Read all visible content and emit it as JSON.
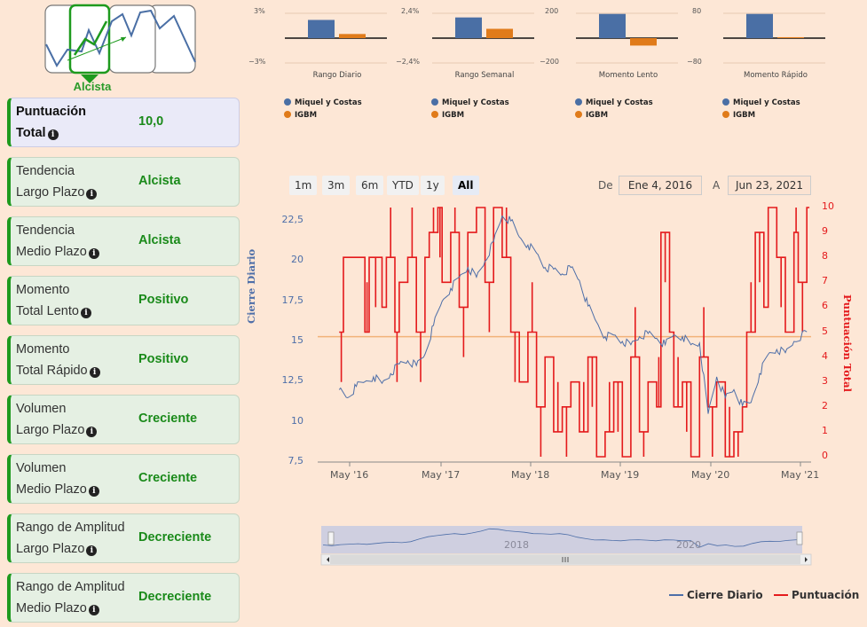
{
  "sidebar": {
    "trend_icon": "trend-selector-icon",
    "trend_label": "Alcista",
    "metrics": [
      {
        "line1": "Puntuación",
        "line2": "Total",
        "value": "10,0"
      },
      {
        "line1": "Tendencia",
        "line2": "Largo Plazo",
        "value": "Alcista"
      },
      {
        "line1": "Tendencia",
        "line2": "Medio Plazo",
        "value": "Alcista"
      },
      {
        "line1": "Momento",
        "line2": "Total Lento",
        "value": "Positivo"
      },
      {
        "line1": "Momento",
        "line2": "Total Rápido",
        "value": "Positivo"
      },
      {
        "line1": "Volumen",
        "line2": "Largo Plazo",
        "value": "Creciente"
      },
      {
        "line1": "Volumen",
        "line2": "Medio Plazo",
        "value": "Creciente"
      },
      {
        "line1": "Rango de Amplitud",
        "line2": "Largo Plazo",
        "value": "Decreciente"
      },
      {
        "line1": "Rango de Amplitud",
        "line2": "Medio Plazo",
        "value": "Decreciente"
      }
    ]
  },
  "colors": {
    "blue": "#4a6fa5",
    "orange": "#e07b1a",
    "red": "#e41a1c",
    "green": "#1e9a1e",
    "avg_line": "#f2b279"
  },
  "legend": {
    "stock": "Miquel y Costas",
    "index": "IGBM"
  },
  "mini_charts": [
    {
      "caption": "Rango Diario",
      "top": "3%",
      "bottom": "−3%",
      "stock": 2.2,
      "index": 0.5,
      "max": 3
    },
    {
      "caption": "Rango Semanal",
      "top": "2,4%",
      "bottom": "−2,4%",
      "stock": 2.0,
      "index": 0.9,
      "max": 2.4
    },
    {
      "caption": "Momento Lento",
      "top": "200",
      "bottom": "−200",
      "stock": 195,
      "index": -60,
      "max": 200
    },
    {
      "caption": "Momento Rápido",
      "top": "80",
      "bottom": "−80",
      "stock": 78,
      "index": 3,
      "max": 80
    }
  ],
  "range_selector": {
    "buttons": [
      "1m",
      "3m",
      "6m",
      "YTD",
      "1y",
      "All"
    ],
    "active": "All",
    "from_label": "De",
    "from_value": "Ene 4, 2016",
    "to_label": "A",
    "to_value": "Jun 23, 2021"
  },
  "chart_data": {
    "type": "line",
    "title": "",
    "x_tick_labels": [
      "May '16",
      "May '17",
      "May '18",
      "May '19",
      "May '20",
      "May '21"
    ],
    "left_axis": {
      "title": "Cierre Diario",
      "ticks": [
        "7,5",
        "10",
        "12,5",
        "15",
        "17,5",
        "20",
        "22,5"
      ],
      "range": [
        7.5,
        23
      ]
    },
    "right_axis": {
      "title": "Puntuación Total",
      "ticks": [
        "0",
        "1",
        "2",
        "3",
        "4",
        "5",
        "6",
        "7",
        "8",
        "9",
        "10"
      ],
      "range": [
        0,
        10
      ]
    },
    "average_line": 15.3,
    "series": [
      {
        "name": "Cierre Diario",
        "x": [
          2016.0,
          2016.1,
          2016.2,
          2016.3,
          2016.4,
          2016.5,
          2016.6,
          2016.7,
          2016.8,
          2016.9,
          2017.0,
          2017.1,
          2017.2,
          2017.3,
          2017.4,
          2017.5,
          2017.6,
          2017.7,
          2017.8,
          2017.9,
          2018.0,
          2018.1,
          2018.2,
          2018.3,
          2018.4,
          2018.5,
          2018.6,
          2018.7,
          2018.8,
          2018.9,
          2019.0,
          2019.1,
          2019.2,
          2019.3,
          2019.4,
          2019.5,
          2019.6,
          2019.7,
          2019.8,
          2019.9,
          2020.0,
          2020.1,
          2020.2,
          2020.3,
          2020.4,
          2020.5,
          2020.6,
          2020.7,
          2020.8,
          2020.9,
          2021.0,
          2021.1,
          2021.2,
          2021.3,
          2021.45
        ],
        "values": [
          12.0,
          11.5,
          12.2,
          12.5,
          12.8,
          12.4,
          13.0,
          13.6,
          13.8,
          13.5,
          14.2,
          16.0,
          17.5,
          18.3,
          19.0,
          19.6,
          19.0,
          20.0,
          21.2,
          22.8,
          22.5,
          21.5,
          21.0,
          20.5,
          19.6,
          19.5,
          19.2,
          19.6,
          18.8,
          17.2,
          16.2,
          15.3,
          15.4,
          15.0,
          14.8,
          15.3,
          15.5,
          15.2,
          14.8,
          15.4,
          15.3,
          14.8,
          14.9,
          10.5,
          12.8,
          11.5,
          12.0,
          11.0,
          11.2,
          13.0,
          14.2,
          14.5,
          14.3,
          15.0,
          15.6
        ]
      },
      {
        "name": "Puntuación",
        "x": [
          2016.0,
          2016.05,
          2016.3,
          2016.35,
          2016.5,
          2016.55,
          2016.65,
          2016.7,
          2016.8,
          2016.9,
          2017.0,
          2017.05,
          2017.15,
          2017.2,
          2017.3,
          2017.4,
          2017.5,
          2017.6,
          2017.7,
          2017.8,
          2017.9,
          2018.0,
          2018.1,
          2018.2,
          2018.3,
          2018.4,
          2018.5,
          2018.6,
          2018.7,
          2018.8,
          2018.9,
          2019.0,
          2019.1,
          2019.2,
          2019.3,
          2019.4,
          2019.5,
          2019.6,
          2019.7,
          2019.75,
          2019.85,
          2019.9,
          2020.0,
          2020.1,
          2020.2,
          2020.3,
          2020.4,
          2020.5,
          2020.6,
          2020.7,
          2020.75,
          2020.85,
          2020.95,
          2021.0,
          2021.1,
          2021.2,
          2021.3,
          2021.35,
          2021.45
        ],
        "values": [
          5,
          8,
          5,
          8,
          6,
          8,
          5,
          7,
          8,
          5,
          8,
          9,
          10,
          7,
          9,
          6,
          9,
          10,
          7,
          10,
          8,
          5,
          3,
          5,
          2,
          4,
          1,
          2,
          3,
          1,
          4,
          0,
          1,
          3,
          0,
          4,
          1,
          3,
          2,
          9,
          5,
          2,
          3,
          0,
          4,
          2,
          3,
          0,
          1,
          2,
          5,
          9,
          6,
          10,
          8,
          5,
          9,
          7,
          10
        ]
      }
    ]
  },
  "navigator": {
    "labels": [
      "2018",
      "2020"
    ],
    "scroll_icon": "scrollbar-grip-icon"
  },
  "main_legend": {
    "stock": "Cierre Diario",
    "score": "Puntuación"
  }
}
